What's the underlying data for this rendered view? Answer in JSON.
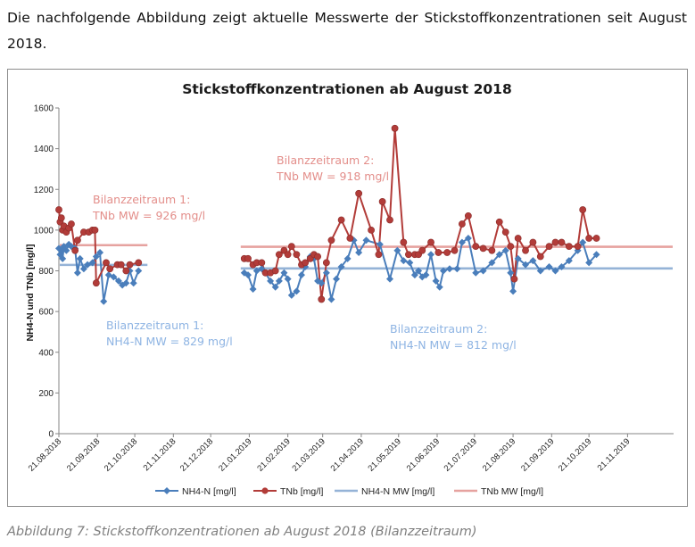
{
  "intro_text": "Die nachfolgende Abbildung zeigt aktuelle Messwerte der Stickstoffkonzentrationen seit August 2018.",
  "caption": "Abbildung 7:  Stickstoffkonzentrationen ab August 2018 (Bilanzzeitraum)",
  "chart_data": {
    "type": "line",
    "title": "Stickstoffkonzentrationen ab August 2018",
    "xlabel": "",
    "ylabel": "NH4-N und TNb [mg/l]",
    "ylim": [
      0,
      1600
    ],
    "yticks": [
      0,
      200,
      400,
      600,
      800,
      1000,
      1200,
      1400,
      1600
    ],
    "xlim": [
      "2018-08-21",
      "2019-12-28"
    ],
    "xticks": [
      {
        "date": "2018-08-21",
        "label": "21.08.2018"
      },
      {
        "date": "2018-09-21",
        "label": "21.09.2018"
      },
      {
        "date": "2018-10-21",
        "label": "21.10.2018"
      },
      {
        "date": "2018-11-21",
        "label": "21.11.2018"
      },
      {
        "date": "2018-12-21",
        "label": "21.12.2018"
      },
      {
        "date": "2019-01-21",
        "label": "21.01.2019"
      },
      {
        "date": "2019-02-21",
        "label": "21.02.2019"
      },
      {
        "date": "2019-03-21",
        "label": "21.03.2019"
      },
      {
        "date": "2019-04-21",
        "label": "21.04.2019"
      },
      {
        "date": "2019-05-21",
        "label": "21.05.2019"
      },
      {
        "date": "2019-06-21",
        "label": "21.06.2019"
      },
      {
        "date": "2019-07-21",
        "label": "21.07.2019"
      },
      {
        "date": "2019-08-21",
        "label": "21.08.2019"
      },
      {
        "date": "2019-09-21",
        "label": "21.09.2019"
      },
      {
        "date": "2019-10-21",
        "label": "21.10.2019"
      },
      {
        "date": "2019-11-21",
        "label": "21.11.2019"
      }
    ],
    "grid": false,
    "legend": "bottom",
    "series": [
      {
        "name": "NH4-N [mg/l]",
        "color": "#4a7ebb",
        "marker": "diamond",
        "segments": [
          [
            [
              "2018-08-21",
              910
            ],
            [
              "2018-08-22",
              880
            ],
            [
              "2018-08-23",
              900
            ],
            [
              "2018-08-24",
              860
            ],
            [
              "2018-08-25",
              920
            ],
            [
              "2018-08-27",
              900
            ],
            [
              "2018-08-29",
              930
            ],
            [
              "2018-08-31",
              920
            ],
            [
              "2018-09-03",
              910
            ],
            [
              "2018-09-05",
              790
            ],
            [
              "2018-09-07",
              860
            ],
            [
              "2018-09-10",
              810
            ],
            [
              "2018-09-13",
              830
            ],
            [
              "2018-09-17",
              840
            ],
            [
              "2018-09-20",
              870
            ],
            [
              "2018-09-23",
              890
            ],
            [
              "2018-09-26",
              650
            ],
            [
              "2018-09-30",
              780
            ],
            [
              "2018-10-04",
              770
            ],
            [
              "2018-10-08",
              750
            ],
            [
              "2018-10-11",
              730
            ],
            [
              "2018-10-14",
              740
            ],
            [
              "2018-10-17",
              800
            ],
            [
              "2018-10-20",
              740
            ],
            [
              "2018-10-24",
              800
            ]
          ],
          [
            [
              "2019-01-17",
              790
            ],
            [
              "2019-01-20",
              780
            ],
            [
              "2019-01-24",
              710
            ],
            [
              "2019-01-27",
              800
            ],
            [
              "2019-01-31",
              810
            ],
            [
              "2019-02-03",
              790
            ],
            [
              "2019-02-07",
              750
            ],
            [
              "2019-02-11",
              720
            ],
            [
              "2019-02-14",
              750
            ],
            [
              "2019-02-18",
              790
            ],
            [
              "2019-02-21",
              760
            ],
            [
              "2019-02-24",
              680
            ],
            [
              "2019-02-28",
              700
            ],
            [
              "2019-03-04",
              780
            ],
            [
              "2019-03-07",
              820
            ],
            [
              "2019-03-11",
              870
            ],
            [
              "2019-03-14",
              860
            ],
            [
              "2019-03-17",
              750
            ],
            [
              "2019-03-20",
              740
            ],
            [
              "2019-03-24",
              790
            ],
            [
              "2019-03-28",
              660
            ],
            [
              "2019-04-01",
              760
            ],
            [
              "2019-04-05",
              820
            ],
            [
              "2019-04-10",
              860
            ],
            [
              "2019-04-15",
              950
            ],
            [
              "2019-04-19",
              890
            ],
            [
              "2019-04-25",
              950
            ],
            [
              "2019-05-06",
              930
            ],
            [
              "2019-05-14",
              760
            ],
            [
              "2019-05-20",
              900
            ],
            [
              "2019-05-25",
              850
            ],
            [
              "2019-05-30",
              840
            ],
            [
              "2019-06-03",
              780
            ],
            [
              "2019-06-06",
              800
            ],
            [
              "2019-06-09",
              770
            ],
            [
              "2019-06-12",
              780
            ],
            [
              "2019-06-16",
              880
            ],
            [
              "2019-06-20",
              750
            ],
            [
              "2019-06-23",
              720
            ],
            [
              "2019-06-26",
              800
            ],
            [
              "2019-07-01",
              810
            ],
            [
              "2019-07-07",
              810
            ],
            [
              "2019-07-11",
              940
            ],
            [
              "2019-07-16",
              960
            ],
            [
              "2019-07-22",
              790
            ],
            [
              "2019-07-28",
              800
            ],
            [
              "2019-08-04",
              840
            ],
            [
              "2019-08-10",
              880
            ],
            [
              "2019-08-15",
              900
            ],
            [
              "2019-08-19",
              790
            ],
            [
              "2019-08-21",
              700
            ],
            [
              "2019-08-25",
              860
            ],
            [
              "2019-08-31",
              830
            ],
            [
              "2019-09-06",
              850
            ],
            [
              "2019-09-12",
              800
            ],
            [
              "2019-09-19",
              820
            ],
            [
              "2019-09-24",
              800
            ],
            [
              "2019-09-29",
              820
            ],
            [
              "2019-10-05",
              850
            ],
            [
              "2019-10-12",
              900
            ],
            [
              "2019-10-16",
              940
            ],
            [
              "2019-10-21",
              840
            ],
            [
              "2019-10-27",
              880
            ]
          ]
        ]
      },
      {
        "name": "TNb [mg/l]",
        "color": "#b23c39",
        "marker": "circle",
        "segments": [
          [
            [
              "2018-08-21",
              1100
            ],
            [
              "2018-08-22",
              1040
            ],
            [
              "2018-08-23",
              1060
            ],
            [
              "2018-08-24",
              1000
            ],
            [
              "2018-08-25",
              1020
            ],
            [
              "2018-08-27",
              990
            ],
            [
              "2018-08-29",
              1010
            ],
            [
              "2018-08-31",
              1030
            ],
            [
              "2018-09-03",
              900
            ],
            [
              "2018-09-05",
              950
            ],
            [
              "2018-09-10",
              990
            ],
            [
              "2018-09-14",
              990
            ],
            [
              "2018-09-17",
              1000
            ],
            [
              "2018-09-19",
              1000
            ],
            [
              "2018-09-20",
              740
            ],
            [
              "2018-09-28",
              840
            ],
            [
              "2018-10-01",
              810
            ],
            [
              "2018-10-07",
              830
            ],
            [
              "2018-10-10",
              830
            ],
            [
              "2018-10-14",
              800
            ],
            [
              "2018-10-17",
              830
            ],
            [
              "2018-10-24",
              840
            ]
          ],
          [
            [
              "2019-01-17",
              860
            ],
            [
              "2019-01-20",
              860
            ],
            [
              "2019-01-24",
              830
            ],
            [
              "2019-01-27",
              840
            ],
            [
              "2019-01-31",
              840
            ],
            [
              "2019-02-03",
              790
            ],
            [
              "2019-02-07",
              790
            ],
            [
              "2019-02-11",
              800
            ],
            [
              "2019-02-14",
              880
            ],
            [
              "2019-02-18",
              900
            ],
            [
              "2019-02-21",
              880
            ],
            [
              "2019-02-24",
              920
            ],
            [
              "2019-02-28",
              880
            ],
            [
              "2019-03-04",
              830
            ],
            [
              "2019-03-07",
              840
            ],
            [
              "2019-03-11",
              860
            ],
            [
              "2019-03-14",
              880
            ],
            [
              "2019-03-17",
              870
            ],
            [
              "2019-03-20",
              660
            ],
            [
              "2019-03-24",
              840
            ],
            [
              "2019-03-28",
              950
            ],
            [
              "2019-04-05",
              1050
            ],
            [
              "2019-04-12",
              960
            ],
            [
              "2019-04-19",
              1180
            ],
            [
              "2019-04-29",
              1000
            ],
            [
              "2019-05-05",
              880
            ],
            [
              "2019-05-08",
              1140
            ],
            [
              "2019-05-14",
              1050
            ],
            [
              "2019-05-18",
              1500
            ],
            [
              "2019-05-25",
              940
            ],
            [
              "2019-05-29",
              880
            ],
            [
              "2019-06-03",
              880
            ],
            [
              "2019-06-06",
              880
            ],
            [
              "2019-06-09",
              900
            ],
            [
              "2019-06-16",
              940
            ],
            [
              "2019-06-22",
              890
            ],
            [
              "2019-06-29",
              890
            ],
            [
              "2019-07-05",
              900
            ],
            [
              "2019-07-11",
              1030
            ],
            [
              "2019-07-16",
              1070
            ],
            [
              "2019-07-22",
              920
            ],
            [
              "2019-07-28",
              910
            ],
            [
              "2019-08-04",
              900
            ],
            [
              "2019-08-10",
              1040
            ],
            [
              "2019-08-15",
              990
            ],
            [
              "2019-08-19",
              920
            ],
            [
              "2019-08-22",
              760
            ],
            [
              "2019-08-25",
              960
            ],
            [
              "2019-08-31",
              900
            ],
            [
              "2019-09-06",
              940
            ],
            [
              "2019-09-12",
              870
            ],
            [
              "2019-09-19",
              920
            ],
            [
              "2019-09-24",
              940
            ],
            [
              "2019-09-29",
              940
            ],
            [
              "2019-10-05",
              920
            ],
            [
              "2019-10-12",
              920
            ],
            [
              "2019-10-16",
              1100
            ],
            [
              "2019-10-21",
              960
            ],
            [
              "2019-10-27",
              960
            ]
          ]
        ]
      }
    ],
    "means": [
      {
        "name": "NH4-N MW [mg/l]",
        "color": "#95b3d7",
        "periods": [
          {
            "from": "2018-08-21",
            "to": "2018-10-24",
            "value": 829
          },
          {
            "from": "2019-01-17",
            "to": "2019-10-27",
            "value": 812
          }
        ]
      },
      {
        "name": "TNb MW [mg/l]",
        "color": "#e6a29f",
        "periods": [
          {
            "from": "2018-08-21",
            "to": "2018-10-24",
            "value": 926
          },
          {
            "from": "2019-01-17",
            "to": "2019-10-27",
            "value": 918
          }
        ]
      }
    ],
    "annotations": [
      {
        "id": "tnb1",
        "lines": [
          "Bilanzzeitraum 1:",
          "TNb MW = 926 mg/l"
        ],
        "color": "#e38e8a"
      },
      {
        "id": "tnb2",
        "lines": [
          "Bilanzzeitraum 2:",
          "TNb MW = 918 mg/l"
        ],
        "color": "#e38e8a"
      },
      {
        "id": "nh1",
        "lines": [
          "Bilanzzeitraum 1:",
          "NH4-N MW = 829 mg/l"
        ],
        "color": "#8eb4e3"
      },
      {
        "id": "nh2",
        "lines": [
          "Bilanzzeitraum 2:",
          "NH4-N MW = 812 mg/l"
        ],
        "color": "#8eb4e3"
      }
    ]
  }
}
